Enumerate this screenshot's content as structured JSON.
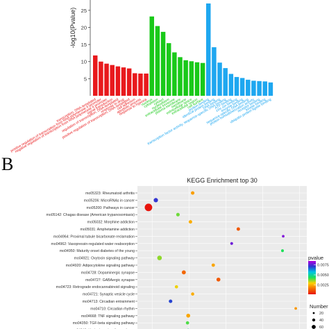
{
  "panel_label": "B",
  "colors": {
    "bp": "#e8191c",
    "cc": "#19c919",
    "mf": "#1ea7f0",
    "panel_bg": "#ebebeb",
    "grid": "#ffffff"
  },
  "chart_data": [
    {
      "type": "bar",
      "title": "",
      "xlabel": "",
      "ylabel": "-log10(Pvalue)",
      "ylim": [
        0,
        27
      ],
      "yticks": [
        5,
        10,
        15,
        20,
        25
      ],
      "groups": [
        {
          "color_key": "bp",
          "categories": [
            "transcription, DNA-templated",
            "positive regulation of transcription from RNA polymerase II promoter",
            "negative regulation of transcription from RNA polymerase II promoter",
            "signal transduction",
            "regulation of transcription, DNA-templated",
            "response to drug",
            "positive regulation of transcription, DNA-templated",
            "cell adhesion",
            "apoptotic process",
            "response to hypoxia"
          ],
          "values": [
            11.8,
            10.0,
            9.4,
            9.0,
            8.6,
            8.3,
            8.0,
            6.6,
            6.5,
            6.5
          ]
        },
        {
          "color_key": "cc",
          "categories": [
            "nucleus",
            "cytoplasm",
            "cytosol",
            "nucleoplasm",
            "extracellular exosome",
            "plasma membrane",
            "membrane",
            "extracellular space",
            "extracellular region",
            "cell surface"
          ],
          "values": [
            23.2,
            20.4,
            18.7,
            15.4,
            12.7,
            11.3,
            10.4,
            10.1,
            9.8,
            9.6
          ]
        },
        {
          "color_key": "mf",
          "categories": [
            "protein binding",
            "identical protein binding",
            "DNA binding",
            "transcription factor activity, sequence-specific DNA binding",
            "ATP binding",
            "zinc ion binding",
            "enzyme binding",
            "sequence-specific DNA binding",
            "protein homodimerization activity",
            "receptor binding",
            "kinase binding",
            "ubiquitin protein ligase binding"
          ],
          "values": [
            27.0,
            14.2,
            9.7,
            8.1,
            6.4,
            5.5,
            5.2,
            4.7,
            4.4,
            4.3,
            4.2,
            3.9
          ]
        }
      ]
    },
    {
      "type": "scatter",
      "title": "KEGG Enrichment top 30",
      "categories": [
        "mo05323: Rheumatoid arthritis",
        "mo05206: MicroRNAs in cancer",
        "mo05200: Pathways in cancer",
        "mo05142: Chagas disease (American trypanosomiasis)",
        "mo05032: Morphine addiction",
        "mo05031: Amphetamine addiction",
        "mo04964: Proximal tubule bicarbonate reclamation",
        "mo04962: Vasopressin-regulated water reabsorption",
        "mo04950: Maturity onset diabetes of the young",
        "mo04921: Oxytocin signaling pathway",
        "mo04920: Adipocytokine signaling pathway",
        "mo04728: Dopaminergic synapse",
        "mo04727: GABAergic synapse",
        "mo04723: Retrograde endocannabinoid signaling",
        "mo04721: Synaptic vesicle cycle",
        "mo04713: Circadian entrainment",
        "mo04710: Circadian rhythm",
        "mo04668: TNF signaling pathway",
        "mo04350: TGF-beta signaling pathway",
        "mo04340: Hedgehog signaling pathway"
      ],
      "points": [
        {
          "rich_factor": 0.105,
          "pvalue": 0.0022,
          "count": 20
        },
        {
          "rich_factor": 0.055,
          "pvalue": 0.0072,
          "count": 28
        },
        {
          "rich_factor": 0.045,
          "pvalue": 0.0001,
          "count": 62
        },
        {
          "rich_factor": 0.085,
          "pvalue": 0.0038,
          "count": 20
        },
        {
          "rich_factor": 0.102,
          "pvalue": 0.0024,
          "count": 19
        },
        {
          "rich_factor": 0.167,
          "pvalue": 0.0012,
          "count": 19
        },
        {
          "rich_factor": 0.228,
          "pvalue": 0.008,
          "count": 10
        },
        {
          "rich_factor": 0.158,
          "pvalue": 0.0078,
          "count": 13
        },
        {
          "rich_factor": 0.227,
          "pvalue": 0.0043,
          "count": 12
        },
        {
          "rich_factor": 0.06,
          "pvalue": 0.0036,
          "count": 31
        },
        {
          "rich_factor": 0.133,
          "pvalue": 0.0023,
          "count": 18
        },
        {
          "rich_factor": 0.093,
          "pvalue": 0.0014,
          "count": 25
        },
        {
          "rich_factor": 0.14,
          "pvalue": 0.0012,
          "count": 24
        },
        {
          "rich_factor": 0.083,
          "pvalue": 0.003,
          "count": 17
        },
        {
          "rich_factor": 0.105,
          "pvalue": 0.0024,
          "count": 16
        },
        {
          "rich_factor": 0.075,
          "pvalue": 0.007,
          "count": 20
        },
        {
          "rich_factor": 0.245,
          "pvalue": 0.0021,
          "count": 10
        },
        {
          "rich_factor": 0.099,
          "pvalue": 0.0023,
          "count": 24
        },
        {
          "rich_factor": 0.098,
          "pvalue": 0.004,
          "count": 17
        },
        {
          "rich_factor": 0.099,
          "pvalue": 0.005,
          "count": 12
        }
      ],
      "color_legend": {
        "title": "pvalue",
        "ticks": [
          0.0075,
          0.005,
          0.0025
        ],
        "tick_labels": [
          "0.0075",
          "0.0050",
          "0.0025"
        ],
        "range": [
          0.0001,
          0.0085
        ]
      },
      "size_legend": {
        "title": "Number",
        "values": [
          20,
          40,
          60
        ]
      }
    }
  ]
}
